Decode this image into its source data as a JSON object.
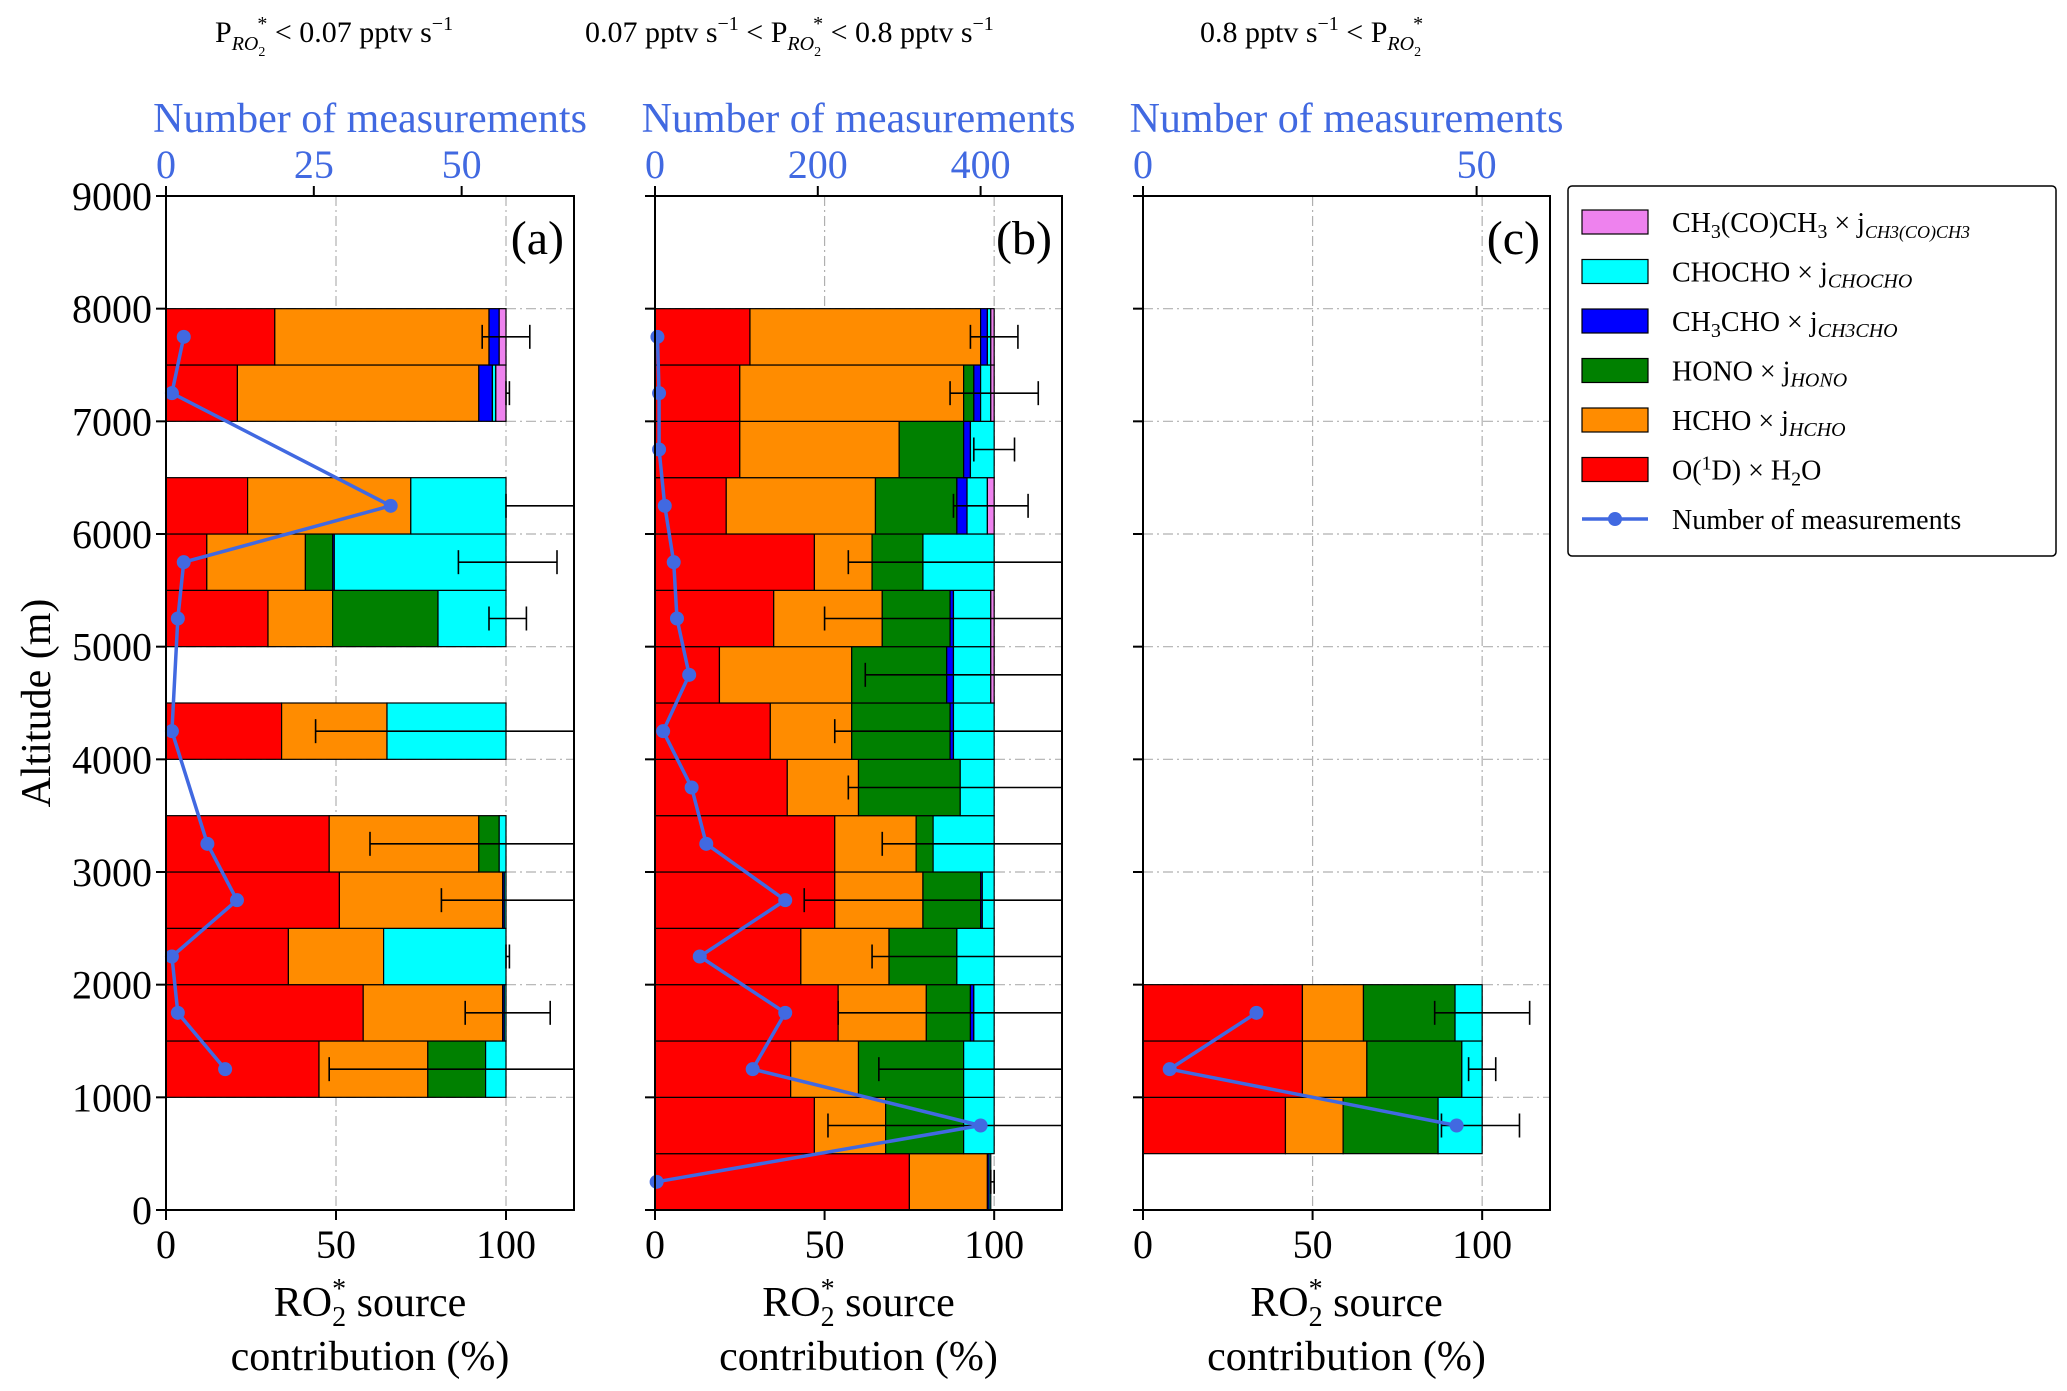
{
  "headers": [
    {
      "pre": "P",
      "sub": "RO",
      "subsub": "2",
      "sup": "*",
      "text": " < 0.07 pptv s",
      "exp": "−1",
      "post": ""
    },
    {
      "pre": "0.07 pptv s",
      "exp": "−1",
      "mid": " <  P",
      "sub": "RO",
      "subsub": "2",
      "sup": "*",
      "text": "  < 0.8 pptv s",
      "exp2": "−1"
    },
    {
      "pre": "0.8 pptv s",
      "exp": "−1",
      "mid": " < P",
      "sub": "RO",
      "subsub": "2",
      "sup": "*"
    }
  ],
  "chart_data": [
    {
      "type": "bar",
      "orientation": "horizontal-stacked",
      "panel_label": "(a)",
      "ylabel": "Altitude (m)",
      "xlabel_line1": "RO",
      "xlabel_sub": "2",
      "xlabel_sup": "*",
      "xlabel_rest": " source",
      "xlabel_line2": "contribution (%)",
      "top_axis_label": "Number of measurements",
      "xlim": [
        0,
        120
      ],
      "ylim": [
        0,
        9000
      ],
      "top_xlim": [
        0,
        69
      ],
      "x_ticks": [
        0,
        50,
        100
      ],
      "y_ticks": [
        0,
        1000,
        2000,
        3000,
        4000,
        5000,
        6000,
        7000,
        8000,
        9000
      ],
      "top_ticks": [
        0,
        25,
        50
      ],
      "bars": [
        {
          "y0": 1000,
          "y1": 1500,
          "O1D": 45,
          "HCHO": 32,
          "HONO": 17,
          "CH3CHO": 0,
          "CHOCHO": 6,
          "CH3COCH3": 0,
          "err": [
            48,
            120
          ]
        },
        {
          "y0": 1500,
          "y1": 2000,
          "O1D": 58,
          "HCHO": 41,
          "HONO": 0,
          "CH3CHO": 0.5,
          "CHOCHO": 0.5,
          "CH3COCH3": 0,
          "err": [
            88,
            113
          ]
        },
        {
          "y0": 2000,
          "y1": 2500,
          "O1D": 36,
          "HCHO": 28,
          "HONO": 0,
          "CH3CHO": 0,
          "CHOCHO": 36,
          "CH3COCH3": 0,
          "err": [
            100,
            101
          ]
        },
        {
          "y0": 2500,
          "y1": 3000,
          "O1D": 51,
          "HCHO": 48,
          "HONO": 0,
          "CH3CHO": 0.5,
          "CHOCHO": 0.5,
          "CH3COCH3": 0,
          "err": [
            81,
            120
          ]
        },
        {
          "y0": 3000,
          "y1": 3500,
          "O1D": 48,
          "HCHO": 44,
          "HONO": 6,
          "CH3CHO": 0,
          "CHOCHO": 2,
          "CH3COCH3": 0,
          "err": [
            60,
            120
          ]
        },
        {
          "y0": 4000,
          "y1": 4500,
          "O1D": 34,
          "HCHO": 31,
          "HONO": 0,
          "CH3CHO": 0,
          "CHOCHO": 35,
          "CH3COCH3": 0,
          "err": [
            44,
            120
          ]
        },
        {
          "y0": 5000,
          "y1": 5500,
          "O1D": 30,
          "HCHO": 19,
          "HONO": 31,
          "CH3CHO": 0,
          "CHOCHO": 20,
          "CH3COCH3": 0,
          "err": [
            95,
            106
          ]
        },
        {
          "y0": 5500,
          "y1": 6000,
          "O1D": 12,
          "HCHO": 29,
          "HONO": 8,
          "CH3CHO": 0.5,
          "CHOCHO": 50.5,
          "CH3COCH3": 0,
          "err": [
            86,
            115
          ]
        },
        {
          "y0": 6000,
          "y1": 6500,
          "O1D": 24,
          "HCHO": 48,
          "HONO": 0,
          "CH3CHO": 0,
          "CHOCHO": 28,
          "CH3COCH3": 0,
          "err": [
            100,
            120
          ]
        },
        {
          "y0": 7000,
          "y1": 7500,
          "O1D": 21,
          "HCHO": 71,
          "HONO": 0,
          "CH3CHO": 4,
          "CHOCHO": 1,
          "CH3COCH3": 3,
          "err": [
            100,
            101
          ]
        },
        {
          "y0": 7500,
          "y1": 8000,
          "O1D": 32,
          "HCHO": 63,
          "HONO": 0,
          "CH3CHO": 3,
          "CHOCHO": 0,
          "CH3COCH3": 2,
          "err": [
            93,
            107
          ]
        }
      ],
      "measurements": [
        {
          "alt": 1250,
          "n": 10
        },
        {
          "alt": 1750,
          "n": 2
        },
        {
          "alt": 2250,
          "n": 1
        },
        {
          "alt": 2750,
          "n": 12
        },
        {
          "alt": 3250,
          "n": 7
        },
        {
          "alt": 4250,
          "n": 1
        },
        {
          "alt": 5250,
          "n": 2
        },
        {
          "alt": 5750,
          "n": 3
        },
        {
          "alt": 6250,
          "n": 38
        },
        {
          "alt": 7250,
          "n": 1
        },
        {
          "alt": 7750,
          "n": 3
        }
      ]
    },
    {
      "type": "bar",
      "orientation": "horizontal-stacked",
      "panel_label": "(b)",
      "xlabel_line1": "RO",
      "xlabel_sub": "2",
      "xlabel_sup": "*",
      "xlabel_rest": " source",
      "xlabel_line2": "contribution (%)",
      "top_axis_label": "Number of measurements",
      "xlim": [
        0,
        120
      ],
      "ylim": [
        0,
        9000
      ],
      "top_xlim": [
        0,
        500
      ],
      "x_ticks": [
        0,
        50,
        100
      ],
      "y_ticks": [
        0,
        1000,
        2000,
        3000,
        4000,
        5000,
        6000,
        7000,
        8000,
        9000
      ],
      "top_ticks": [
        0,
        200,
        400
      ],
      "bars": [
        {
          "y0": 0,
          "y1": 500,
          "O1D": 75,
          "HCHO": 23,
          "HONO": 0,
          "CH3CHO": 0.5,
          "CHOCHO": 0.5,
          "CH3COCH3": 0,
          "err": [
            99,
            100
          ]
        },
        {
          "y0": 500,
          "y1": 1000,
          "O1D": 47,
          "HCHO": 21,
          "HONO": 23,
          "CH3CHO": 0,
          "CHOCHO": 9,
          "CH3COCH3": 0,
          "err": [
            51,
            120
          ]
        },
        {
          "y0": 1000,
          "y1": 1500,
          "O1D": 40,
          "HCHO": 20,
          "HONO": 31,
          "CH3CHO": 0,
          "CHOCHO": 9,
          "CH3COCH3": 0,
          "err": [
            66,
            120
          ]
        },
        {
          "y0": 1500,
          "y1": 2000,
          "O1D": 54,
          "HCHO": 26,
          "HONO": 13,
          "CH3CHO": 1,
          "CHOCHO": 6,
          "CH3COCH3": 0,
          "err": [
            54,
            120
          ]
        },
        {
          "y0": 2000,
          "y1": 2500,
          "O1D": 43,
          "HCHO": 26,
          "HONO": 20,
          "CH3CHO": 0,
          "CHOCHO": 11,
          "CH3COCH3": 0,
          "err": [
            64,
            120
          ]
        },
        {
          "y0": 2500,
          "y1": 3000,
          "O1D": 53,
          "HCHO": 26,
          "HONO": 17,
          "CH3CHO": 0.5,
          "CHOCHO": 3.5,
          "CH3COCH3": 0,
          "err": [
            44,
            120
          ]
        },
        {
          "y0": 3000,
          "y1": 3500,
          "O1D": 53,
          "HCHO": 24,
          "HONO": 5,
          "CH3CHO": 0,
          "CHOCHO": 18,
          "CH3COCH3": 0,
          "err": [
            67,
            120
          ]
        },
        {
          "y0": 3500,
          "y1": 4000,
          "O1D": 39,
          "HCHO": 21,
          "HONO": 30,
          "CH3CHO": 0,
          "CHOCHO": 10,
          "CH3COCH3": 0,
          "err": [
            57,
            120
          ]
        },
        {
          "y0": 4000,
          "y1": 4500,
          "O1D": 34,
          "HCHO": 24,
          "HONO": 29,
          "CH3CHO": 1,
          "CHOCHO": 12,
          "CH3COCH3": 0,
          "err": [
            53,
            120
          ]
        },
        {
          "y0": 4500,
          "y1": 5000,
          "O1D": 19,
          "HCHO": 39,
          "HONO": 28,
          "CH3CHO": 2,
          "CHOCHO": 11,
          "CH3COCH3": 1,
          "err": [
            62,
            120
          ]
        },
        {
          "y0": 5000,
          "y1": 5500,
          "O1D": 35,
          "HCHO": 32,
          "HONO": 20,
          "CH3CHO": 1,
          "CHOCHO": 11,
          "CH3COCH3": 1,
          "err": [
            50,
            120
          ]
        },
        {
          "y0": 5500,
          "y1": 6000,
          "O1D": 47,
          "HCHO": 17,
          "HONO": 15,
          "CH3CHO": 0,
          "CHOCHO": 21,
          "CH3COCH3": 0,
          "err": [
            57,
            120
          ]
        },
        {
          "y0": 6000,
          "y1": 6500,
          "O1D": 21,
          "HCHO": 44,
          "HONO": 24,
          "CH3CHO": 3,
          "CHOCHO": 6,
          "CH3COCH3": 2,
          "err": [
            88,
            110
          ]
        },
        {
          "y0": 6500,
          "y1": 7000,
          "O1D": 25,
          "HCHO": 47,
          "HONO": 19,
          "CH3CHO": 2,
          "CHOCHO": 7,
          "CH3COCH3": 0,
          "err": [
            94,
            106
          ]
        },
        {
          "y0": 7000,
          "y1": 7500,
          "O1D": 25,
          "HCHO": 66,
          "HONO": 3,
          "CH3CHO": 2,
          "CHOCHO": 3,
          "CH3COCH3": 1,
          "err": [
            87,
            113
          ]
        },
        {
          "y0": 7500,
          "y1": 8000,
          "O1D": 28,
          "HCHO": 68,
          "HONO": 0,
          "CH3CHO": 2,
          "CHOCHO": 1,
          "CH3COCH3": 1,
          "err": [
            93,
            107
          ]
        }
      ],
      "measurements": [
        {
          "alt": 250,
          "n": 2
        },
        {
          "alt": 750,
          "n": 400
        },
        {
          "alt": 1250,
          "n": 120
        },
        {
          "alt": 1750,
          "n": 160
        },
        {
          "alt": 2250,
          "n": 55
        },
        {
          "alt": 2750,
          "n": 160
        },
        {
          "alt": 3250,
          "n": 63
        },
        {
          "alt": 3750,
          "n": 45
        },
        {
          "alt": 4250,
          "n": 10
        },
        {
          "alt": 4750,
          "n": 42
        },
        {
          "alt": 5250,
          "n": 27
        },
        {
          "alt": 5750,
          "n": 23
        },
        {
          "alt": 6250,
          "n": 12
        },
        {
          "alt": 6750,
          "n": 5
        },
        {
          "alt": 7250,
          "n": 5
        },
        {
          "alt": 7750,
          "n": 3
        }
      ]
    },
    {
      "type": "bar",
      "orientation": "horizontal-stacked",
      "panel_label": "(c)",
      "xlabel_line1": "RO",
      "xlabel_sub": "2",
      "xlabel_sup": "*",
      "xlabel_rest": " source",
      "xlabel_line2": "contribution (%)",
      "top_axis_label": "Number of measurements",
      "xlim": [
        0,
        120
      ],
      "ylim": [
        0,
        9000
      ],
      "top_xlim": [
        0,
        61
      ],
      "x_ticks": [
        0,
        50,
        100
      ],
      "y_ticks": [
        0,
        1000,
        2000,
        3000,
        4000,
        5000,
        6000,
        7000,
        8000,
        9000
      ],
      "top_ticks": [
        0,
        50
      ],
      "bars": [
        {
          "y0": 500,
          "y1": 1000,
          "O1D": 42,
          "HCHO": 17,
          "HONO": 28,
          "CH3CHO": 0,
          "CHOCHO": 13,
          "CH3COCH3": 0,
          "err": [
            88,
            111
          ]
        },
        {
          "y0": 1000,
          "y1": 1500,
          "O1D": 47,
          "HCHO": 19,
          "HONO": 28,
          "CH3CHO": 0,
          "CHOCHO": 6,
          "CH3COCH3": 0,
          "err": [
            96,
            104
          ]
        },
        {
          "y0": 1500,
          "y1": 2000,
          "O1D": 47,
          "HCHO": 18,
          "HONO": 27,
          "CH3CHO": 0,
          "CHOCHO": 8,
          "CH3COCH3": 0,
          "err": [
            86,
            114
          ]
        }
      ],
      "measurements": [
        {
          "alt": 750,
          "n": 47
        },
        {
          "alt": 1250,
          "n": 4
        },
        {
          "alt": 1750,
          "n": 17
        }
      ]
    }
  ],
  "legend": {
    "items": [
      {
        "key": "CH3COCH3",
        "kind": "patch",
        "color": "#ee82ee",
        "main": "CH",
        "parts": [
          [
            "3",
            ""
          ],
          [
            "(CO)CH",
            ""
          ],
          [
            "3",
            ""
          ]
        ],
        "times": " × j",
        "jsub": "CH3(CO)CH3"
      },
      {
        "key": "CHOCHO",
        "kind": "patch",
        "color": "#00ffff",
        "main": "CHOCHO",
        "times": " × j",
        "jsub": "CHOCHO"
      },
      {
        "key": "CH3CHO",
        "kind": "patch",
        "color": "#0000ff",
        "main": "CH3CHO",
        "times": " × j",
        "jsub": "CH3CHO"
      },
      {
        "key": "HONO",
        "kind": "patch",
        "color": "#008000",
        "main": "HONO",
        "times": " × j",
        "jsub": "HONO"
      },
      {
        "key": "HCHO",
        "kind": "patch",
        "color": "#ff8c00",
        "main": "HCHO",
        "times": " × j",
        "jsub": "HCHO"
      },
      {
        "key": "O1D",
        "kind": "patch",
        "color": "#ff0000",
        "main": "O(1D) × H2O"
      },
      {
        "key": "meas",
        "kind": "line",
        "color": "#4169e1",
        "main": "Number of measurements"
      }
    ]
  },
  "colors": {
    "O1D": "#ff0000",
    "HCHO": "#ff8c00",
    "HONO": "#008000",
    "CH3CHO": "#0000ff",
    "CHOCHO": "#00ffff",
    "CH3COCH3": "#ee82ee",
    "measurements": "#4169e1",
    "grid": "#b0b0b0"
  }
}
